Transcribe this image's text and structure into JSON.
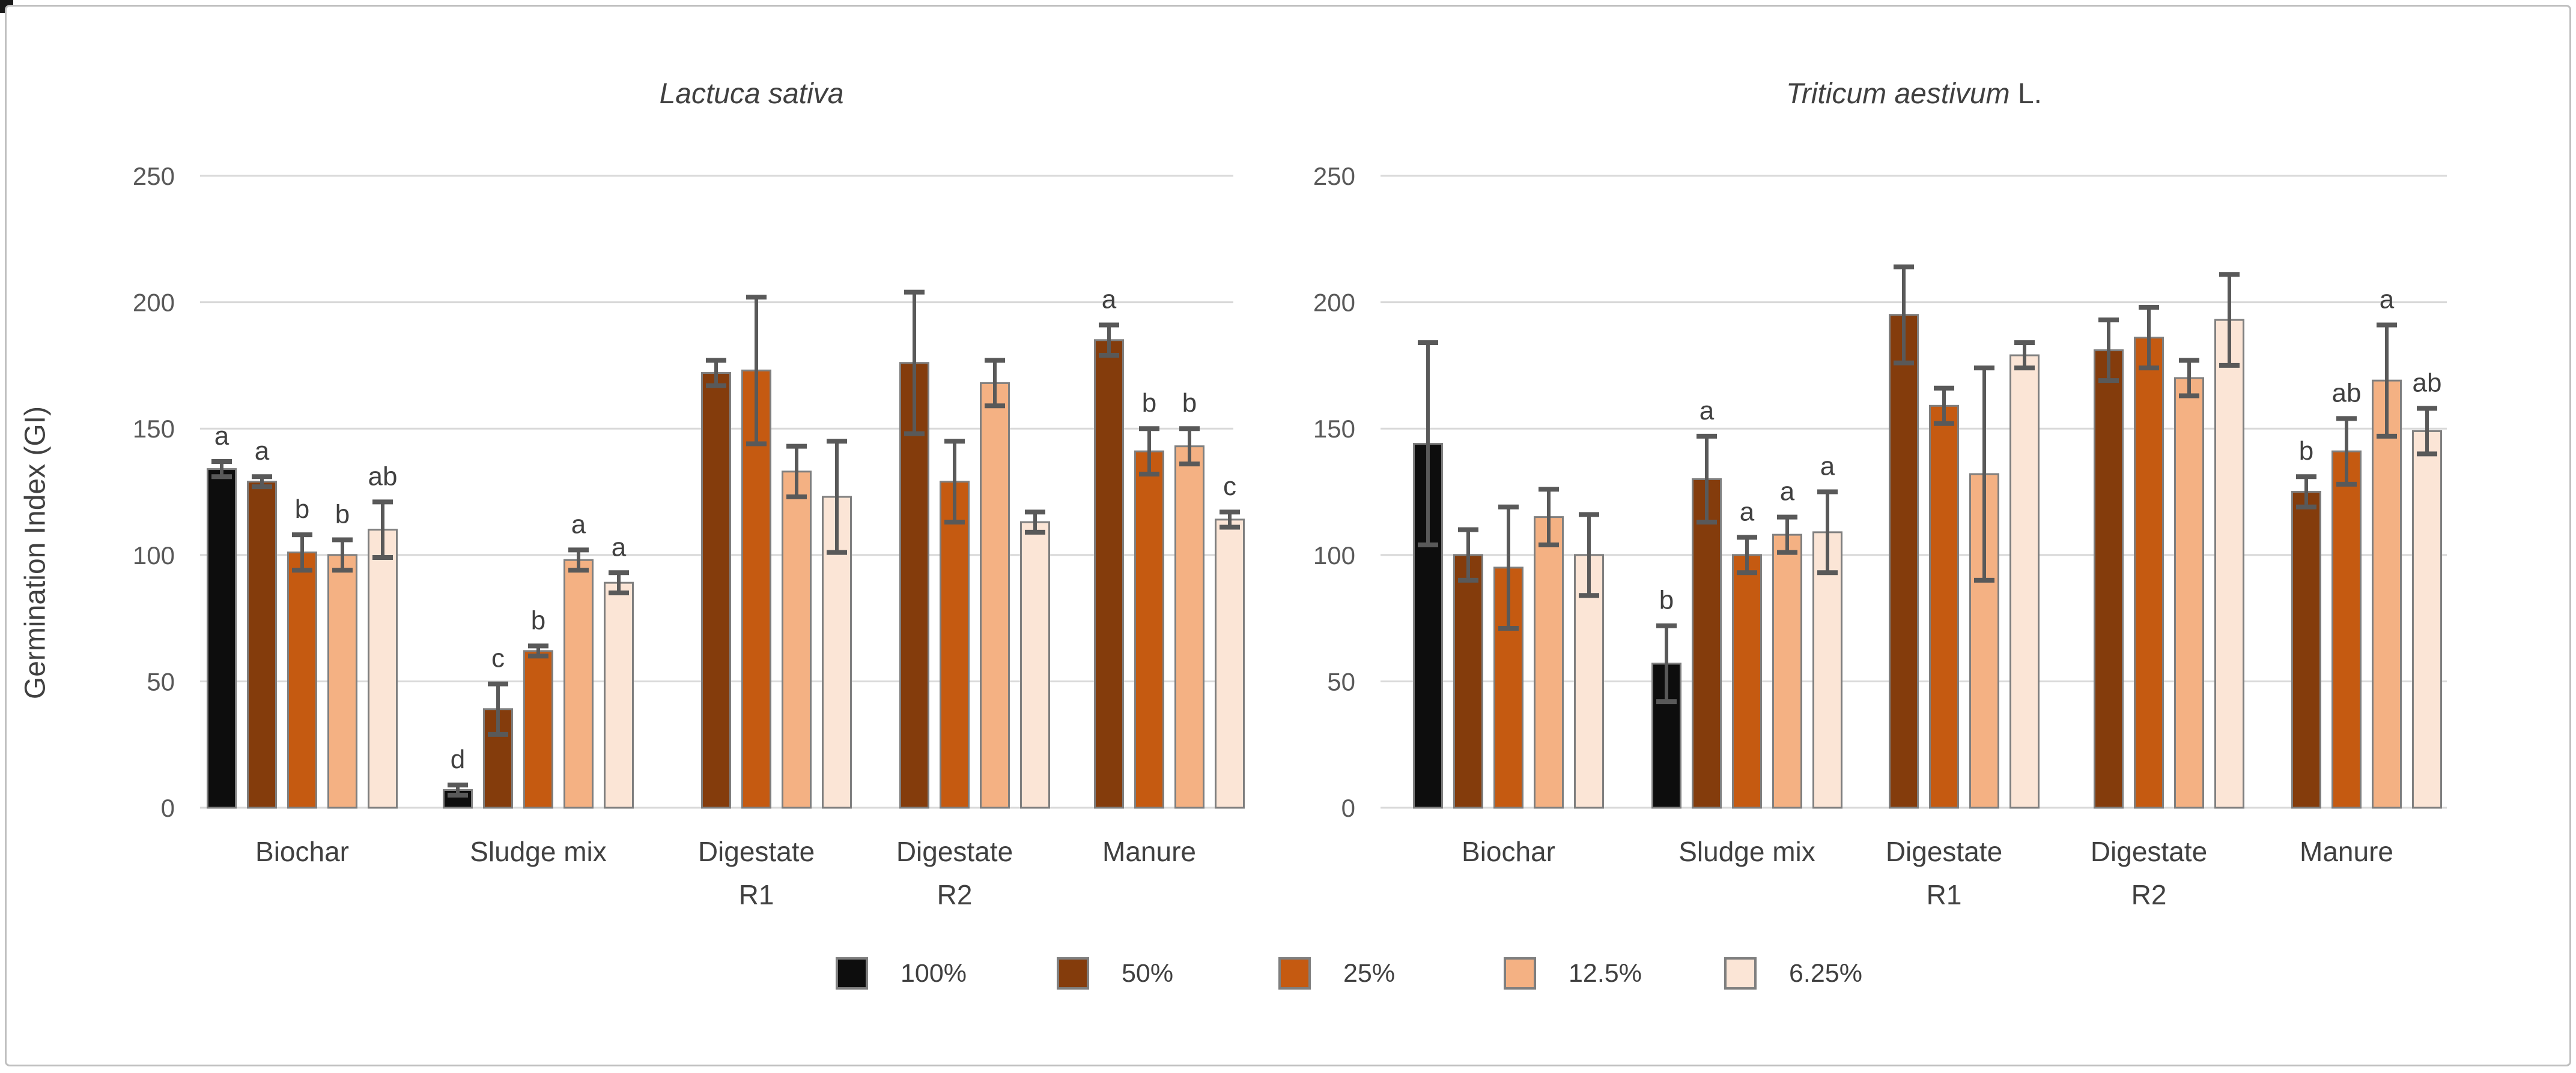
{
  "figure": {
    "y_axis_title": "Germination Index (GI)",
    "y_ticks": [
      0,
      50,
      100,
      150,
      200,
      250
    ],
    "categories": [
      "Biochar",
      "Sludge mix",
      "Digestate\nR1",
      "Digestate\nR2",
      "Manure"
    ],
    "legend": [
      {
        "label": "100%",
        "color": "#0d0d0d"
      },
      {
        "label": "50%",
        "color": "#843c0c"
      },
      {
        "label": "25%",
        "color": "#c55a11"
      },
      {
        "label": "12.5%",
        "color": "#f4b183"
      },
      {
        "label": "6.25%",
        "color": "#fbe5d6"
      }
    ],
    "colors": {
      "bar_stroke": "#7f7f7f",
      "error_bar": "#595959",
      "gridline": "#d9d9d9",
      "tick_text": "#595959",
      "label_text": "#404040",
      "frame_border": "#bfbfbf"
    }
  },
  "chart_data": [
    {
      "type": "bar",
      "title": "Lactuca sativa",
      "title_suffix": "",
      "xlabel": "",
      "ylabel": "Germination Index (GI)",
      "ylim": [
        0,
        250
      ],
      "grid": true,
      "legend_position": "bottom",
      "categories": [
        "Biochar",
        "Sludge mix",
        "Digestate R1",
        "Digestate R2",
        "Manure"
      ],
      "series": [
        {
          "name": "100%",
          "color": "#0d0d0d",
          "values": [
            134,
            7,
            null,
            null,
            null
          ],
          "errors": [
            3,
            2,
            null,
            null,
            null
          ],
          "letters": [
            "a",
            "d",
            "",
            "",
            ""
          ]
        },
        {
          "name": "50%",
          "color": "#843c0c",
          "values": [
            129,
            39,
            172,
            176,
            185
          ],
          "errors": [
            2,
            10,
            5,
            28,
            6
          ],
          "letters": [
            "a",
            "c",
            "",
            "",
            "a"
          ]
        },
        {
          "name": "25%",
          "color": "#c55a11",
          "values": [
            101,
            62,
            173,
            129,
            141
          ],
          "errors": [
            7,
            2,
            29,
            16,
            9
          ],
          "letters": [
            "b",
            "b",
            "",
            "",
            "b"
          ]
        },
        {
          "name": "12.5%",
          "color": "#f4b183",
          "values": [
            100,
            98,
            133,
            168,
            143
          ],
          "errors": [
            6,
            4,
            10,
            9,
            7
          ],
          "letters": [
            "b",
            "a",
            "",
            "",
            "b"
          ]
        },
        {
          "name": "6.25%",
          "color": "#fbe5d6",
          "values": [
            110,
            89,
            123,
            113,
            114
          ],
          "errors": [
            11,
            4,
            22,
            4,
            3
          ],
          "letters": [
            "ab",
            "a",
            "",
            "",
            "c"
          ]
        }
      ]
    },
    {
      "type": "bar",
      "title": "Triticum aestivum",
      "title_suffix": " L.",
      "xlabel": "",
      "ylabel": "Germination Index (GI)",
      "ylim": [
        0,
        250
      ],
      "grid": true,
      "legend_position": "bottom",
      "categories": [
        "Biochar",
        "Sludge mix",
        "Digestate R1",
        "Digestate R2",
        "Manure"
      ],
      "series": [
        {
          "name": "100%",
          "color": "#0d0d0d",
          "values": [
            144,
            57,
            null,
            null,
            null
          ],
          "errors": [
            40,
            15,
            null,
            null,
            null
          ],
          "letters": [
            "",
            "b",
            "",
            "",
            ""
          ]
        },
        {
          "name": "50%",
          "color": "#843c0c",
          "values": [
            100,
            130,
            195,
            181,
            125
          ],
          "errors": [
            10,
            17,
            19,
            12,
            6
          ],
          "letters": [
            "",
            "a",
            "",
            "",
            "b"
          ]
        },
        {
          "name": "25%",
          "color": "#c55a11",
          "values": [
            95,
            100,
            159,
            186,
            141
          ],
          "errors": [
            24,
            7,
            7,
            12,
            13
          ],
          "letters": [
            "",
            "a",
            "",
            "",
            "ab"
          ]
        },
        {
          "name": "12.5%",
          "color": "#f4b183",
          "values": [
            115,
            108,
            132,
            170,
            169
          ],
          "errors": [
            11,
            7,
            42,
            7,
            22
          ],
          "letters": [
            "",
            "a",
            "",
            "",
            "a"
          ]
        },
        {
          "name": "6.25%",
          "color": "#fbe5d6",
          "values": [
            100,
            109,
            179,
            193,
            149
          ],
          "errors": [
            16,
            16,
            5,
            18,
            9
          ],
          "letters": [
            "",
            "a",
            "",
            "",
            "ab"
          ]
        }
      ]
    }
  ]
}
